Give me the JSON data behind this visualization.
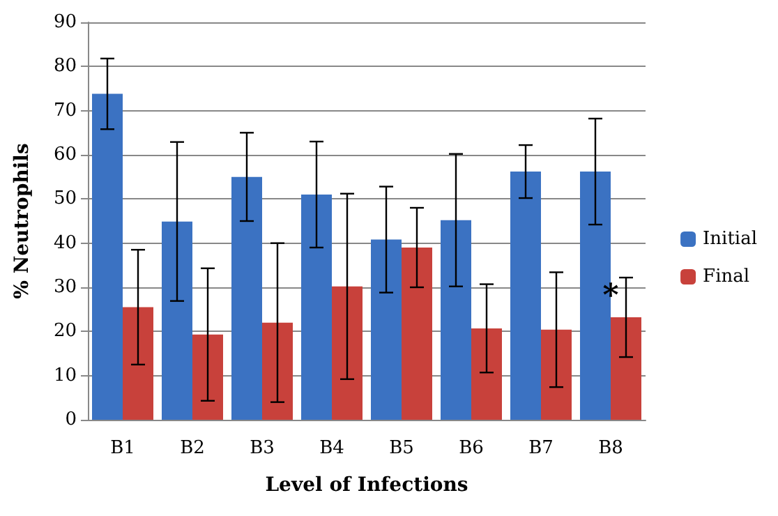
{
  "chart_data": {
    "type": "bar",
    "xlabel": "Level of Infections",
    "ylabel": "% Neutrophils",
    "categories": [
      "B1",
      "B2",
      "B3",
      "B4",
      "B5",
      "B6",
      "B7",
      "B8"
    ],
    "series": [
      {
        "name": "Initial",
        "color": "#3b72c2",
        "values": [
          73.8,
          44.9,
          55,
          51,
          40.8,
          45.2,
          56.2,
          56.2
        ],
        "errors": [
          8,
          18,
          10,
          12,
          12,
          15,
          6,
          12
        ]
      },
      {
        "name": "Final",
        "color": "#c8413b",
        "values": [
          25.5,
          19.3,
          22,
          30.2,
          39,
          20.7,
          20.4,
          23.2
        ],
        "errors": [
          13,
          15,
          18,
          21,
          9,
          10,
          13,
          9
        ]
      }
    ],
    "ylim": [
      0,
      90
    ],
    "yticks": [
      0,
      10,
      20,
      30,
      40,
      50,
      60,
      70,
      80,
      90
    ],
    "grid": "y",
    "legend": "right",
    "annotations": [
      {
        "text": "*",
        "x": "B8",
        "y": 30
      }
    ]
  }
}
